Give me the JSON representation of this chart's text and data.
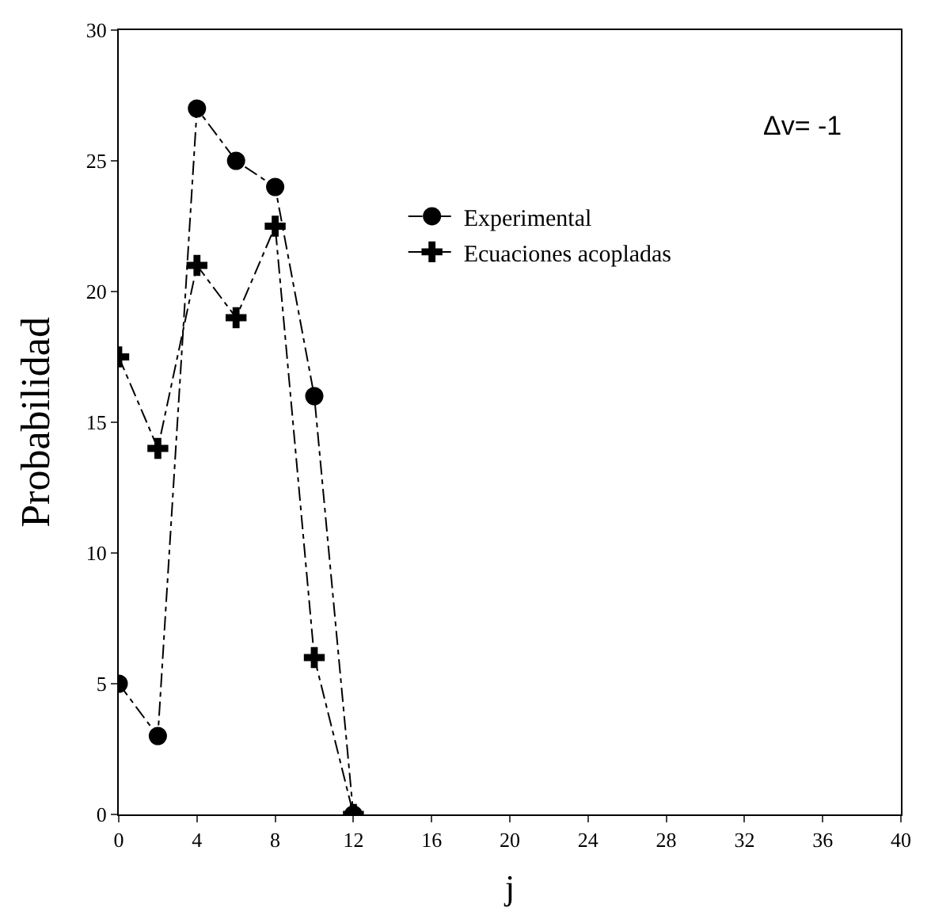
{
  "chart_data": {
    "type": "line",
    "xlabel": "j",
    "ylabel": "Probabilidad",
    "x": [
      0,
      2,
      4,
      6,
      8,
      10,
      12
    ],
    "series": [
      {
        "name": "Experimental",
        "color": "#000000",
        "marker": "circle",
        "values": [
          5,
          3,
          27,
          25,
          24,
          16,
          0
        ]
      },
      {
        "name": "Ecuaciones acopladas",
        "color": "#000000",
        "marker": "cross",
        "values": [
          17.5,
          14,
          21,
          19,
          22.5,
          6,
          0
        ]
      }
    ],
    "xlim": [
      0,
      40
    ],
    "xticks": [
      0,
      4,
      8,
      12,
      16,
      20,
      24,
      28,
      32,
      36,
      40
    ],
    "ylim": [
      0,
      30
    ],
    "yticks": [
      0,
      5,
      10,
      15,
      20,
      25,
      30
    ],
    "annotations": [
      "Δv= -1"
    ],
    "legend": "right",
    "line_style": "dotted"
  }
}
